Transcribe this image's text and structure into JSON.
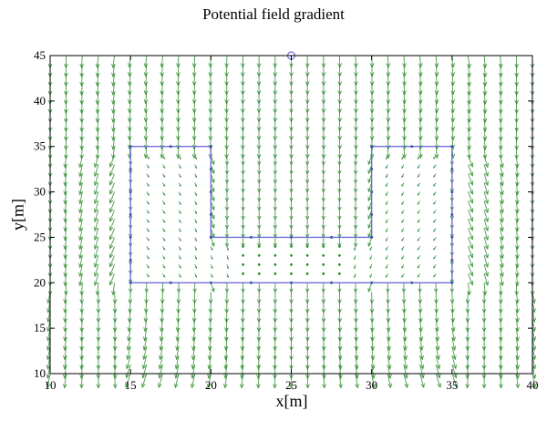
{
  "chart_data": {
    "type": "quiver",
    "title": "Potential field gradient",
    "xlabel": "x[m]",
    "ylabel": "y[m]",
    "xlim": [
      10,
      40
    ],
    "ylim": [
      10,
      45
    ],
    "xticks": [
      10,
      15,
      20,
      25,
      30,
      35,
      40
    ],
    "yticks": [
      10,
      15,
      20,
      25,
      30,
      35,
      40,
      45
    ],
    "grid": false,
    "arrow_color": "#2e8b2e",
    "boundary_color": "#6f6fdc",
    "goal": {
      "x": 25,
      "y": 45
    },
    "boundary": [
      [
        15,
        20
      ],
      [
        15,
        35
      ],
      [
        20,
        35
      ],
      [
        20,
        25
      ],
      [
        30,
        25
      ],
      [
        30,
        35
      ],
      [
        35,
        35
      ],
      [
        35,
        20
      ],
      [
        15,
        20
      ]
    ],
    "field_grid": {
      "x_start": 10,
      "x_end": 40,
      "x_step": 1,
      "y_start": 10,
      "y_end": 45,
      "y_step": 1
    },
    "field_direction": "downward gradient; arrows converge toward the enclosed region and fade inside it"
  }
}
